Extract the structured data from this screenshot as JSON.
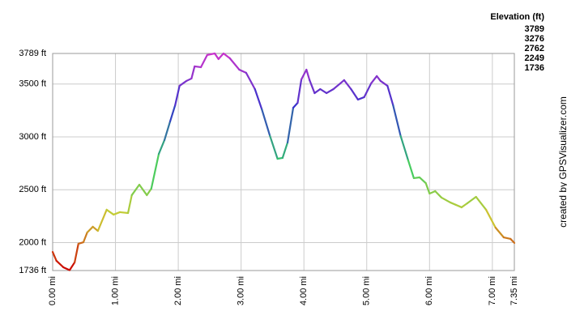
{
  "chart_data": {
    "type": "line",
    "legend_title": "Elevation (ft)",
    "credit": "created by GPSVisualizer.com",
    "legend": [
      {
        "value": 3789,
        "color": "#cc33cc"
      },
      {
        "value": 3276,
        "color": "#3333cc"
      },
      {
        "value": 2762,
        "color": "#33cc66"
      },
      {
        "value": 2249,
        "color": "#cccc33"
      },
      {
        "value": 1736,
        "color": "#cc0000"
      }
    ],
    "xlim": [
      0,
      7.35
    ],
    "ylim": [
      1736,
      3789
    ],
    "xticks": [
      {
        "value": 0,
        "label": "0.00 mi"
      },
      {
        "value": 1,
        "label": "1.00 mi"
      },
      {
        "value": 2,
        "label": "2.00 mi"
      },
      {
        "value": 3,
        "label": "3.00 mi"
      },
      {
        "value": 4,
        "label": "4.00 mi"
      },
      {
        "value": 5,
        "label": "5.00 mi"
      },
      {
        "value": 6,
        "label": "6.00 mi"
      },
      {
        "value": 7,
        "label": "7.00 mi"
      },
      {
        "value": 7.35,
        "label": "7.35 mi"
      }
    ],
    "yticks": [
      {
        "value": 1736,
        "label": "1736 ft"
      },
      {
        "value": 2000,
        "label": "2000 ft"
      },
      {
        "value": 2500,
        "label": "2500 ft"
      },
      {
        "value": 3000,
        "label": "3000 ft"
      },
      {
        "value": 3500,
        "label": "3500 ft"
      },
      {
        "value": 3789,
        "label": "3789 ft"
      }
    ],
    "grid": true,
    "x": [
      0,
      0.06,
      0.17,
      0.27,
      0.35,
      0.41,
      0.49,
      0.55,
      0.64,
      0.72,
      0.86,
      0.97,
      1.07,
      1.2,
      1.26,
      1.38,
      1.5,
      1.57,
      1.69,
      1.78,
      1.87,
      1.95,
      2.02,
      2.13,
      2.21,
      2.26,
      2.36,
      2.46,
      2.58,
      2.64,
      2.72,
      2.82,
      2.97,
      3.08,
      3.22,
      3.33,
      3.46,
      3.58,
      3.66,
      3.74,
      3.83,
      3.9,
      3.96,
      4.04,
      4.09,
      4.17,
      4.26,
      4.36,
      4.47,
      4.58,
      4.64,
      4.75,
      4.86,
      4.96,
      5.07,
      5.16,
      5.22,
      5.33,
      5.42,
      5.54,
      5.66,
      5.75,
      5.84,
      5.94,
      6.0,
      6.09,
      6.19,
      6.33,
      6.42,
      6.51,
      6.6,
      6.74,
      6.9,
      7.05,
      7.18,
      7.29,
      7.35
    ],
    "values": [
      1912,
      1828,
      1767,
      1740,
      1813,
      1989,
      2004,
      2096,
      2150,
      2111,
      2311,
      2265,
      2288,
      2280,
      2449,
      2548,
      2449,
      2510,
      2839,
      2970,
      3146,
      3299,
      3483,
      3529,
      3552,
      3667,
      3659,
      3774,
      3789,
      3736,
      3789,
      3744,
      3636,
      3606,
      3452,
      3261,
      3008,
      2793,
      2801,
      2947,
      3276,
      3322,
      3544,
      3636,
      3537,
      3414,
      3452,
      3414,
      3452,
      3506,
      3537,
      3452,
      3353,
      3376,
      3506,
      3575,
      3529,
      3483,
      3299,
      3008,
      2778,
      2610,
      2617,
      2563,
      2464,
      2487,
      2426,
      2380,
      2357,
      2334,
      2372,
      2433,
      2311,
      2142,
      2050,
      2035,
      1997
    ]
  }
}
